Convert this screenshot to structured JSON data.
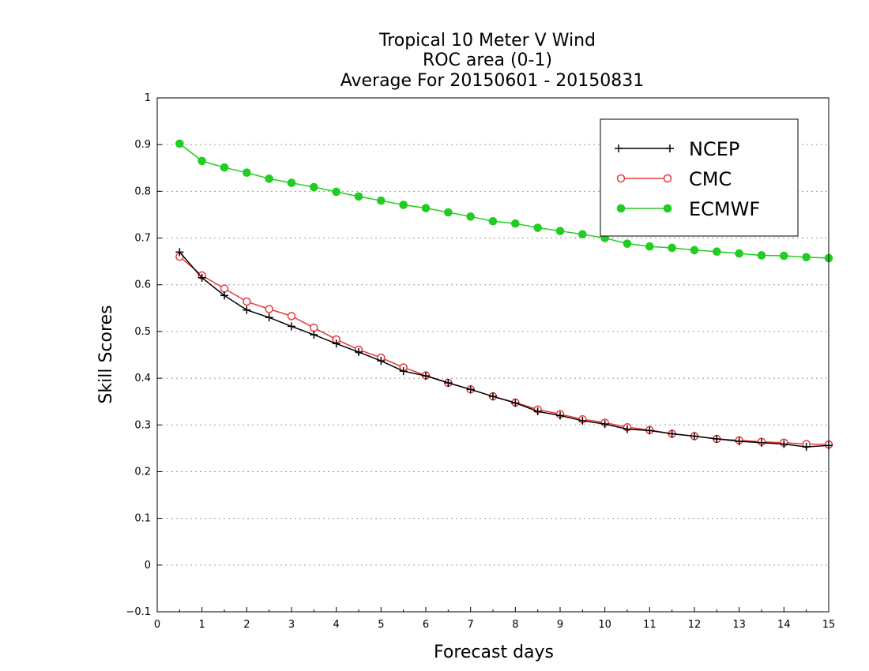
{
  "chart_data": {
    "type": "line",
    "title": [
      "Tropical 10 Meter V Wind",
      "ROC area (0-1)",
      "Average For 20150601 - 20150831"
    ],
    "xlabel": "Forecast days",
    "ylabel": "Skill Scores",
    "xlim": [
      0,
      15
    ],
    "ylim": [
      -0.1,
      1
    ],
    "xticks": [
      0,
      1,
      2,
      3,
      4,
      5,
      6,
      7,
      8,
      9,
      10,
      11,
      12,
      13,
      14,
      15
    ],
    "yticks": [
      -0.1,
      0,
      0.1,
      0.2,
      0.3,
      0.4,
      0.5,
      0.6,
      0.7,
      0.8,
      0.9,
      1
    ],
    "ytick_labels": [
      "−0.1",
      "0",
      "0.1",
      "0.2",
      "0.3",
      "0.4",
      "0.5",
      "0.6",
      "0.7",
      "0.8",
      "0.9",
      "1"
    ],
    "grid": true,
    "legend_position": "top-right",
    "x": [
      0.5,
      1,
      1.5,
      2,
      2.5,
      3,
      3.5,
      4,
      4.5,
      5,
      5.5,
      6,
      6.5,
      7,
      7.5,
      8,
      8.5,
      9,
      9.5,
      10,
      10.5,
      11,
      11.5,
      12,
      12.5,
      13,
      13.5,
      14,
      14.5,
      15
    ],
    "series": [
      {
        "name": "NCEP",
        "color": "#000000",
        "marker": "plus",
        "values": [
          0.67,
          0.615,
          0.577,
          0.546,
          0.53,
          0.511,
          0.493,
          0.474,
          0.456,
          0.437,
          0.415,
          0.405,
          0.39,
          0.376,
          0.361,
          0.347,
          0.329,
          0.32,
          0.309,
          0.302,
          0.291,
          0.288,
          0.281,
          0.276,
          0.27,
          0.265,
          0.262,
          0.259,
          0.253,
          0.256
        ]
      },
      {
        "name": "CMC",
        "color": "#e8393c",
        "marker": "open-circle",
        "values": [
          0.66,
          0.62,
          0.592,
          0.564,
          0.548,
          0.533,
          0.508,
          0.483,
          0.461,
          0.444,
          0.423,
          0.406,
          0.39,
          0.376,
          0.361,
          0.348,
          0.333,
          0.323,
          0.312,
          0.305,
          0.295,
          0.289,
          0.281,
          0.276,
          0.27,
          0.267,
          0.264,
          0.262,
          0.259,
          0.258
        ]
      },
      {
        "name": "ECMWF",
        "color": "#22cc22",
        "marker": "filled-circle",
        "values": [
          0.902,
          0.865,
          0.851,
          0.84,
          0.827,
          0.818,
          0.809,
          0.799,
          0.789,
          0.78,
          0.771,
          0.764,
          0.755,
          0.746,
          0.736,
          0.731,
          0.722,
          0.715,
          0.708,
          0.7,
          0.688,
          0.682,
          0.679,
          0.674,
          0.671,
          0.667,
          0.663,
          0.662,
          0.659,
          0.657
        ]
      }
    ]
  }
}
